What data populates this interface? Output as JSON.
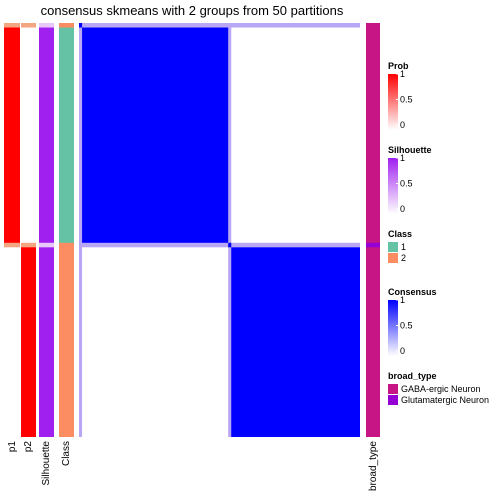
{
  "chart_data": {
    "type": "heatmap",
    "title": "consensus skmeans with 2 groups from 50 partitions",
    "column_labels": [
      "p1",
      "p2",
      "Silhouette",
      "Class",
      "broad_type"
    ],
    "groups": [
      {
        "class": "1",
        "count": 59
      },
      {
        "class": "2",
        "count": 51
      }
    ],
    "consensus_range": [
      0,
      1
    ],
    "legends": [
      {
        "title": "Prob",
        "type": "continuous",
        "ticks": [
          "1",
          "0.5",
          "0"
        ],
        "colors": [
          "#FF0000",
          "#FFFFFF"
        ]
      },
      {
        "title": "Silhouette",
        "type": "continuous",
        "ticks": [
          "1",
          "0.5",
          "0"
        ],
        "colors": [
          "#A020F0",
          "#FFFFFF"
        ]
      },
      {
        "title": "Class",
        "type": "discrete",
        "items": [
          {
            "label": "1",
            "color": "#66C2A5"
          },
          {
            "label": "2",
            "color": "#FC8D62"
          }
        ]
      },
      {
        "title": "Consensus",
        "type": "continuous",
        "ticks": [
          "1",
          "0.5",
          "0"
        ],
        "colors": [
          "#0000FF",
          "#FFFFFF"
        ]
      },
      {
        "title": "broad_type",
        "type": "discrete",
        "items": [
          {
            "label": "GABA-ergic Neuron",
            "color": "#C71585"
          },
          {
            "label": "Glutamatergic Neuron",
            "color": "#9400D3"
          }
        ]
      }
    ],
    "colors": {
      "prob": "#FF0000",
      "prob_low": "#F4A582",
      "silhouette": "#A020F0",
      "silhouette_low": "#E8C8FA",
      "class_1": "#66C2A5",
      "class_2": "#FC8D62",
      "consensus": "#0000FF",
      "consensus_mid": "#B9A6F5",
      "broad_gaba": "#C71585",
      "broad_glut": "#9400D3"
    }
  }
}
